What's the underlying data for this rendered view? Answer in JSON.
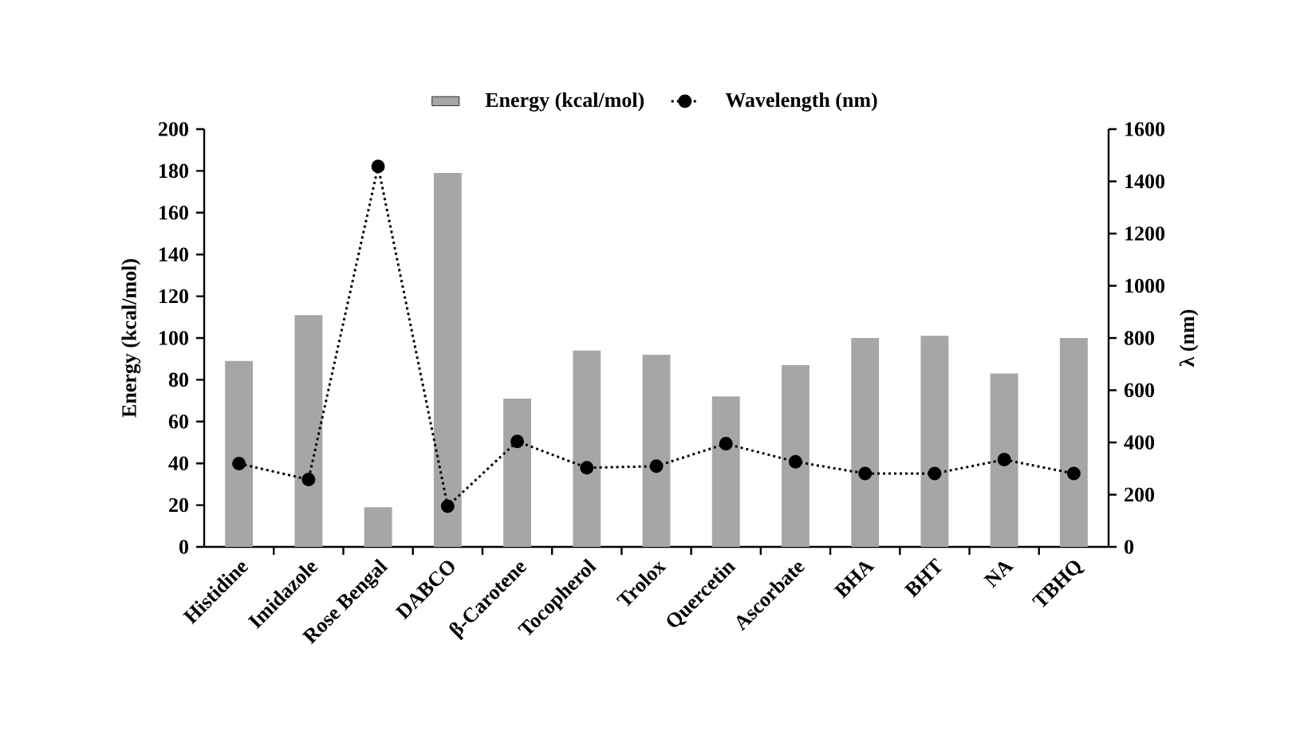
{
  "chart_data": {
    "type": "bar",
    "categories": [
      "Histidine",
      "Imidazole",
      "Rose Bengal",
      "DABCO",
      "β-Carotene",
      "Tocopherol",
      "Trolox",
      "Quercetin",
      "Ascorbate",
      "BHA",
      "BHT",
      "NA",
      "TBHQ"
    ],
    "series": [
      {
        "name": "Energy (kcal/mol)",
        "color": "#a6a6a6",
        "values": [
          89,
          111,
          19,
          179,
          71,
          94,
          92,
          72,
          87,
          100,
          101,
          83,
          100
        ]
      },
      {
        "name": "Wavelength (nm)",
        "type": "line",
        "axis": "y2",
        "color": "#000000",
        "values": [
          319,
          258,
          1457,
          156,
          404,
          303,
          309,
          395,
          326,
          281,
          281,
          334,
          281
        ]
      }
    ],
    "ylabel": "Energy (kcal/mol)",
    "y2label": "λ (nm)",
    "ylim": [
      0,
      200
    ],
    "yticks": [
      0,
      20,
      40,
      60,
      80,
      100,
      120,
      140,
      160,
      180,
      200
    ],
    "y2lim": [
      0,
      1600
    ],
    "y2ticks": [
      0,
      200,
      400,
      600,
      800,
      1000,
      1200,
      1400,
      1600
    ],
    "marker": "circle",
    "line_style": "dotted",
    "legend": "top",
    "grid": false
  }
}
